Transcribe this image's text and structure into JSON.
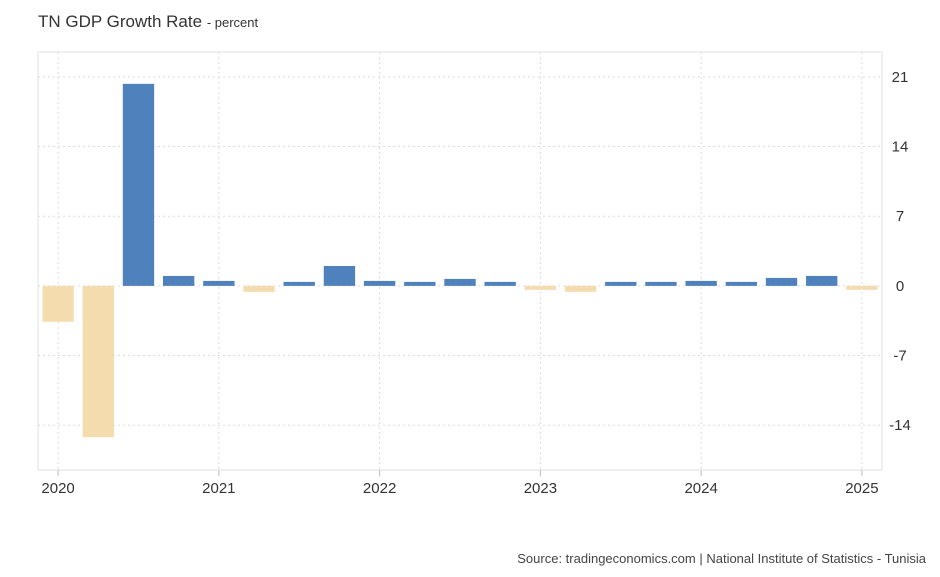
{
  "chart_data": {
    "type": "bar",
    "title": "TN GDP Growth Rate",
    "subtitle": "percent",
    "source": "Source: tradingeconomics.com | National Institute of Statistics - Tunisia",
    "categories": [
      "2020 Q1",
      "2020 Q2",
      "2020 Q3",
      "2020 Q4",
      "2021 Q1",
      "2021 Q2",
      "2021 Q3",
      "2021 Q4",
      "2022 Q1",
      "2022 Q2",
      "2022 Q3",
      "2022 Q4",
      "2023 Q1",
      "2023 Q2",
      "2023 Q3",
      "2023 Q4",
      "2024 Q1",
      "2024 Q2",
      "2024 Q3",
      "2024 Q4",
      "2025 Q1"
    ],
    "values": [
      -3.6,
      -15.2,
      20.3,
      1.0,
      0.5,
      -0.6,
      0.4,
      2.0,
      0.5,
      0.4,
      0.7,
      0.4,
      -0.4,
      -0.6,
      0.4,
      0.4,
      0.5,
      0.4,
      0.8,
      1.0,
      -0.4
    ],
    "x_tick_labels": [
      "2020",
      "2021",
      "2022",
      "2023",
      "2024",
      "2025"
    ],
    "y_ticks": [
      21,
      14,
      7,
      0,
      -7,
      -14
    ],
    "ylim": [
      -18.5,
      23.5
    ],
    "ylabel": "",
    "xlabel": "",
    "y_axis_side": "right",
    "grid": true,
    "positive_color": "#4f81bd",
    "negative_color": "#f4dcae"
  }
}
